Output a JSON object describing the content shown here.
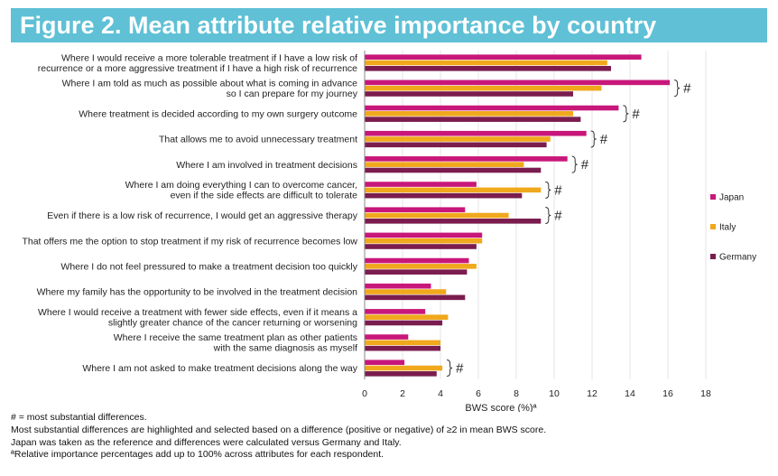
{
  "header": {
    "title": "Figure 2. Mean attribute relative importance by country"
  },
  "footnotes": [
    "# = most substantial differences.",
    "Most substantial differences are highlighted and selected based on a difference (positive or negative) of ≥2 in mean BWS score.",
    "Japan was taken as the reference and differences were calculated versus Germany and Italy.",
    "ªRelative importance percentages add up to 100% across attributes for each respondent."
  ],
  "colors": {
    "japan": "#c8177a",
    "italy": "#f0a81c",
    "germany": "#7a1d4e",
    "title_bar": "#5fc0d6"
  },
  "chart_data": {
    "type": "bar",
    "orientation": "horizontal",
    "xlabel": "BWS score (%)ª",
    "xlim": [
      0,
      18
    ],
    "xticks": [
      0,
      2,
      4,
      6,
      8,
      10,
      12,
      14,
      16,
      18
    ],
    "legend_position": "right",
    "categories": [
      [
        "Where I would receive a more tolerable treatment if I have a low risk of",
        "recurrence or a more aggressive treatment if I have a high risk of recurrence"
      ],
      [
        "Where I am told as much as possible about what is coming in advance",
        "so I can prepare for my journey"
      ],
      [
        "Where treatment is decided according to my own surgery outcome"
      ],
      [
        "That allows me to avoid unnecessary treatment"
      ],
      [
        "Where I am involved in treatment decisions"
      ],
      [
        "Where I am doing everything I can to overcome cancer,",
        "even if the side effects are difficult to tolerate"
      ],
      [
        "Even if there is a low risk of recurrence, I would get an aggressive therapy"
      ],
      [
        "That offers me the option to stop treatment if my risk of recurrence becomes low"
      ],
      [
        "Where I do not feel pressured to make a treatment decision too quickly"
      ],
      [
        "Where my family has the opportunity to be involved in the treatment decision"
      ],
      [
        "Where I would receive a treatment with fewer side effects, even if it means a",
        "slightly greater chance of the cancer returning or worsening"
      ],
      [
        "Where I receive the same treatment plan as other patients",
        "with the same diagnosis as myself"
      ],
      [
        "Where I am not asked to make treatment decisions along the way"
      ]
    ],
    "series": [
      {
        "name": "Japan",
        "color": "#c8177a",
        "values": [
          14.6,
          16.1,
          13.4,
          11.7,
          10.7,
          5.9,
          5.3,
          6.2,
          5.5,
          3.5,
          3.2,
          2.3,
          2.1
        ]
      },
      {
        "name": "Italy",
        "color": "#f0a81c",
        "values": [
          12.8,
          12.5,
          11.0,
          9.8,
          8.4,
          9.3,
          7.6,
          6.2,
          5.9,
          4.3,
          4.4,
          4.0,
          4.1
        ]
      },
      {
        "name": "Germany",
        "color": "#7a1d4e",
        "values": [
          13.0,
          11.0,
          11.4,
          9.6,
          9.3,
          8.3,
          9.3,
          5.9,
          5.4,
          5.3,
          4.1,
          4.0,
          3.8
        ]
      }
    ],
    "significance_marker": "#",
    "significant_categories": [
      1,
      2,
      3,
      4,
      5,
      6,
      12
    ]
  }
}
